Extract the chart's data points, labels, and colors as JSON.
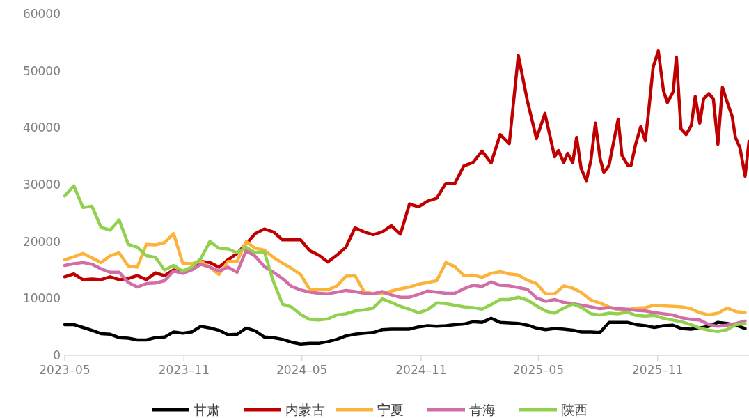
{
  "chart_data": {
    "type": "line",
    "legend": "bottom",
    "grid": false,
    "marker": "none",
    "line_style": "solid",
    "xlim": [
      "2023-05-01",
      "2026-03-22"
    ],
    "ylim": [
      0,
      60000
    ],
    "xticks": [
      {
        "value": "2023-05-01",
        "label": "2023–05"
      },
      {
        "value": "2023-11-01",
        "label": "2023–11"
      },
      {
        "value": "2024-05-01",
        "label": "2024–05"
      },
      {
        "value": "2024-11-01",
        "label": "2024–11"
      },
      {
        "value": "2025-05-01",
        "label": "2025–05"
      },
      {
        "value": "2025-11-01",
        "label": "2025–11"
      }
    ],
    "yticks": [
      0,
      10000,
      20000,
      30000,
      40000,
      50000,
      60000
    ],
    "x": [
      "2023-05-01",
      "2023-05-15",
      "2023-05-29",
      "2023-06-12",
      "2023-06-26",
      "2023-07-10",
      "2023-07-24",
      "2023-08-07",
      "2023-08-21",
      "2023-09-04",
      "2023-09-18",
      "2023-10-02",
      "2023-10-16",
      "2023-10-30",
      "2023-11-13",
      "2023-11-27",
      "2023-12-11",
      "2023-12-25",
      "2024-01-08",
      "2024-01-22",
      "2024-02-05",
      "2024-02-19",
      "2024-03-04",
      "2024-03-18",
      "2024-04-01",
      "2024-04-15",
      "2024-04-29",
      "2024-05-13",
      "2024-05-27",
      "2024-06-10",
      "2024-06-24",
      "2024-07-08",
      "2024-07-22",
      "2024-08-05",
      "2024-08-19",
      "2024-09-02",
      "2024-09-16",
      "2024-09-30",
      "2024-10-14",
      "2024-10-28",
      "2024-11-11",
      "2024-11-25",
      "2024-12-09",
      "2024-12-23",
      "2025-01-06",
      "2025-01-20",
      "2025-02-03",
      "2025-02-17",
      "2025-03-03",
      "2025-03-17",
      "2025-03-31",
      "2025-04-14",
      "2025-04-28",
      "2025-05-12",
      "2025-05-26",
      "2025-06-09",
      "2025-06-23",
      "2025-07-07",
      "2025-07-21",
      "2025-08-04",
      "2025-08-18",
      "2025-09-01",
      "2025-09-15",
      "2025-09-29",
      "2025-10-13",
      "2025-10-27",
      "2025-11-10",
      "2025-11-24",
      "2025-12-08",
      "2025-12-22",
      "2026-01-05",
      "2026-01-19",
      "2026-02-02",
      "2026-02-16",
      "2026-03-02",
      "2026-03-16"
    ],
    "series": [
      {
        "name": "甘肃",
        "color": "#000000",
        "values": [
          5400,
          5400,
          4900,
          4400,
          3800,
          3700,
          3100,
          3000,
          2700,
          2700,
          3100,
          3200,
          4100,
          3900,
          4100,
          5100,
          4800,
          4400,
          3600,
          3700,
          4800,
          4300,
          3200,
          3100,
          2800,
          2300,
          2000,
          2100,
          2100,
          2400,
          2800,
          3400,
          3700,
          3900,
          4000,
          4500,
          4600,
          4600,
          4600,
          5000,
          5200,
          5100,
          5200,
          5400,
          5500,
          5900,
          5800,
          6500,
          5800,
          5700,
          5600,
          5300,
          4800,
          4500,
          4700,
          4600,
          4400,
          4100,
          4100,
          4000,
          5800,
          5800,
          5800,
          5400,
          5200,
          4900,
          5200,
          5300,
          4700,
          4600,
          4800,
          5100,
          5800,
          5600,
          5300,
          4700
        ]
      },
      {
        "name": "内蒙古",
        "color": "#c00000",
        "x": [
          "2023-05-01",
          "2023-05-15",
          "2023-05-29",
          "2023-06-12",
          "2023-06-26",
          "2023-07-10",
          "2023-07-24",
          "2023-08-07",
          "2023-08-21",
          "2023-09-04",
          "2023-09-18",
          "2023-10-02",
          "2023-10-16",
          "2023-10-30",
          "2023-11-13",
          "2023-11-27",
          "2023-12-11",
          "2023-12-25",
          "2024-01-08",
          "2024-01-22",
          "2024-02-05",
          "2024-02-19",
          "2024-03-04",
          "2024-03-18",
          "2024-04-01",
          "2024-04-15",
          "2024-04-29",
          "2024-05-13",
          "2024-05-27",
          "2024-06-10",
          "2024-06-24",
          "2024-07-08",
          "2024-07-22",
          "2024-08-05",
          "2024-08-19",
          "2024-09-02",
          "2024-09-16",
          "2024-09-30",
          "2024-10-14",
          "2024-10-28",
          "2024-11-11",
          "2024-11-25",
          "2024-12-09",
          "2024-12-23",
          "2025-01-06",
          "2025-01-20",
          "2025-02-03",
          "2025-02-17",
          "2025-03-03",
          "2025-03-17",
          "2025-03-31",
          "2025-04-14",
          "2025-04-28",
          "2025-05-11",
          "2025-05-26",
          "2025-06-01",
          "2025-06-09",
          "2025-06-15",
          "2025-06-23",
          "2025-06-29",
          "2025-07-06",
          "2025-07-14",
          "2025-07-21",
          "2025-07-28",
          "2025-08-04",
          "2025-08-10",
          "2025-08-18",
          "2025-09-01",
          "2025-09-07",
          "2025-09-16",
          "2025-09-21",
          "2025-09-28",
          "2025-10-06",
          "2025-10-13",
          "2025-10-18",
          "2025-10-25",
          "2025-11-02",
          "2025-11-10",
          "2025-11-16",
          "2025-11-25",
          "2025-11-30",
          "2025-12-07",
          "2025-12-15",
          "2025-12-23",
          "2025-12-29",
          "2026-01-05",
          "2026-01-11",
          "2026-01-19",
          "2026-01-26",
          "2026-02-02",
          "2026-02-09",
          "2026-02-17",
          "2026-02-24",
          "2026-03-01",
          "2026-03-08",
          "2026-03-16",
          "2026-03-22"
        ],
        "values": [
          13800,
          14300,
          13300,
          13400,
          13300,
          13800,
          13300,
          13500,
          14000,
          13300,
          14500,
          14000,
          15000,
          14500,
          15200,
          16500,
          16300,
          15500,
          16800,
          17900,
          19600,
          21400,
          22200,
          21700,
          20300,
          20300,
          20300,
          18400,
          17600,
          16400,
          17600,
          19000,
          22400,
          21700,
          21200,
          21700,
          22800,
          21300,
          26600,
          26100,
          27100,
          27600,
          30200,
          30200,
          33300,
          33900,
          35900,
          33800,
          38800,
          37200,
          52700,
          44700,
          38100,
          42500,
          34900,
          36000,
          33900,
          35500,
          33900,
          38300,
          32800,
          30700,
          34300,
          40800,
          34700,
          32100,
          33400,
          41500,
          35100,
          33400,
          33400,
          37100,
          40200,
          37700,
          42800,
          50600,
          53500,
          46500,
          44400,
          46300,
          52400,
          39800,
          38800,
          40400,
          45500,
          40800,
          45100,
          46000,
          45100,
          37100,
          47100,
          44300,
          42000,
          38300,
          36500,
          31500,
          37600
        ]
      },
      {
        "name": "宁夏",
        "color": "#fbb33c",
        "values": [
          16800,
          17300,
          17900,
          17100,
          16300,
          17500,
          18000,
          15700,
          15500,
          19500,
          19400,
          19800,
          21400,
          16200,
          16100,
          16500,
          15500,
          14200,
          16500,
          16500,
          20000,
          18800,
          18500,
          17200,
          16200,
          15300,
          14200,
          11600,
          11500,
          11500,
          12200,
          13900,
          14000,
          11200,
          10800,
          10800,
          11300,
          11700,
          12000,
          12500,
          12800,
          13100,
          16300,
          15600,
          14000,
          14100,
          13700,
          14400,
          14700,
          14300,
          14100,
          13200,
          12600,
          10800,
          10800,
          12200,
          11800,
          11000,
          9700,
          9200,
          8500,
          8000,
          8000,
          8300,
          8400,
          8800,
          8700,
          8600,
          8500,
          8200,
          7500,
          7100,
          7400,
          8300,
          7700,
          7500
        ]
      },
      {
        "name": "青海",
        "color": "#d16ea6",
        "values": [
          15800,
          16100,
          16300,
          16000,
          15200,
          14600,
          14600,
          12800,
          12000,
          12600,
          12700,
          13100,
          14800,
          14400,
          15000,
          16000,
          15500,
          14800,
          15500,
          14600,
          18400,
          17400,
          15600,
          14600,
          13500,
          12100,
          11500,
          11100,
          10900,
          10800,
          11100,
          11400,
          11200,
          10900,
          10800,
          11200,
          10600,
          10200,
          10200,
          10700,
          11300,
          11100,
          10900,
          10900,
          11700,
          12300,
          12100,
          12900,
          12300,
          12200,
          11900,
          11600,
          10100,
          9500,
          9800,
          9300,
          9100,
          8800,
          8500,
          8200,
          8400,
          8200,
          8100,
          7900,
          7800,
          7500,
          7300,
          7100,
          6600,
          6300,
          6200,
          5400,
          5100,
          5300,
          5600,
          6000
        ]
      },
      {
        "name": "陕西",
        "color": "#92d050",
        "values": [
          28000,
          29800,
          26000,
          26200,
          22500,
          22000,
          23800,
          19500,
          19000,
          17500,
          17200,
          15000,
          15800,
          14800,
          15500,
          17000,
          20000,
          18800,
          18700,
          18000,
          19000,
          18000,
          18200,
          13000,
          9000,
          8500,
          7200,
          6300,
          6200,
          6400,
          7100,
          7300,
          7800,
          8000,
          8300,
          9900,
          9300,
          8600,
          8100,
          7500,
          8000,
          9200,
          9100,
          8800,
          8500,
          8400,
          8100,
          8900,
          9800,
          9800,
          10200,
          9700,
          8700,
          7800,
          7400,
          8300,
          9000,
          8400,
          7300,
          7100,
          7400,
          7300,
          7600,
          7000,
          6900,
          7000,
          6500,
          6200,
          5900,
          5400,
          4800,
          4400,
          4200,
          4500,
          5400,
          5600
        ]
      }
    ]
  }
}
